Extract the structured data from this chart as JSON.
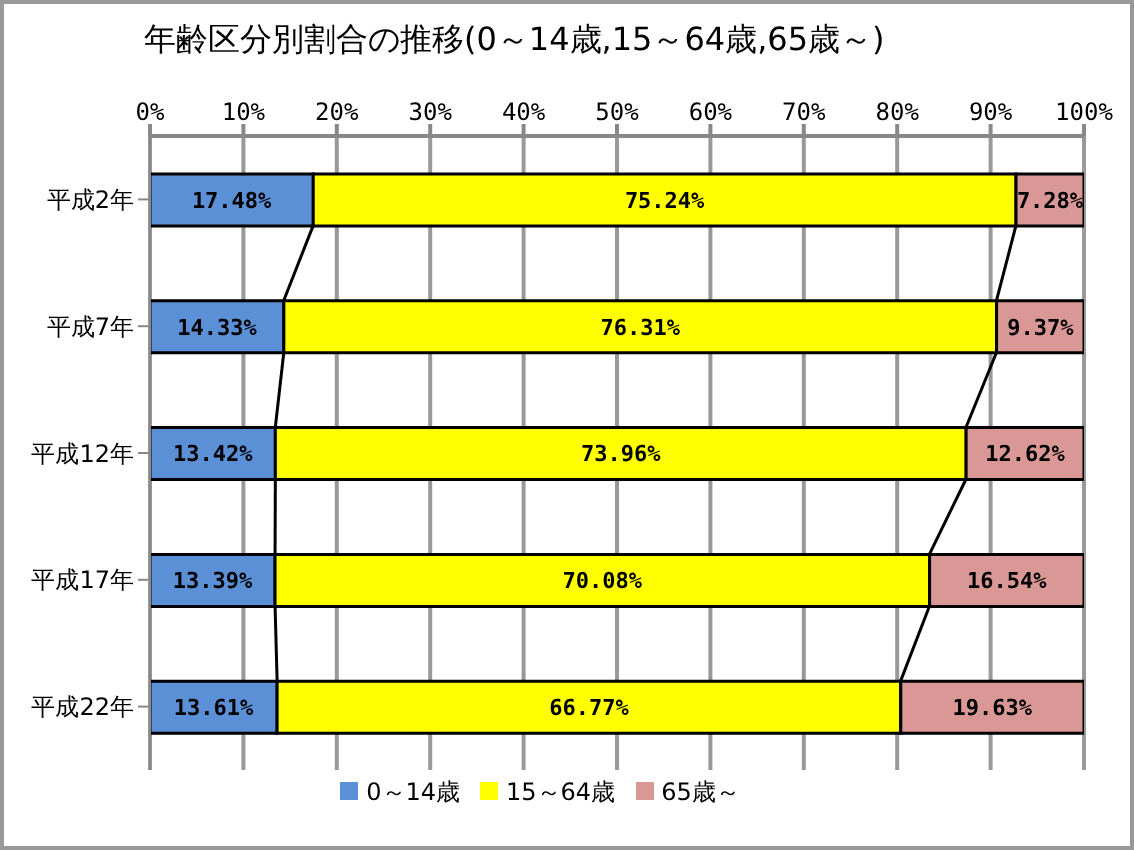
{
  "chart_data": {
    "type": "bar",
    "orientation": "horizontal",
    "stacked": true,
    "title": "年齢区分別割合の推移(0～14歳,15～64歳,65歳～)",
    "categories": [
      "平成2年",
      "平成7年",
      "平成12年",
      "平成17年",
      "平成22年"
    ],
    "series": [
      {
        "name": "0～14歳",
        "color": "#5b8fd6",
        "values": [
          17.48,
          14.33,
          13.42,
          13.39,
          13.61
        ],
        "value_labels": [
          "17.48%",
          "14.33%",
          "13.42%",
          "13.39%",
          "13.61%"
        ]
      },
      {
        "name": "15～64歳",
        "color": "#ffff00",
        "values": [
          75.24,
          76.31,
          73.96,
          70.08,
          66.77
        ],
        "value_labels": [
          "75.24%",
          "76.31%",
          "73.96%",
          "70.08%",
          "66.77%"
        ]
      },
      {
        "name": "65歳～",
        "color": "#d99795",
        "values": [
          7.28,
          9.37,
          12.62,
          16.54,
          19.63
        ],
        "value_labels": [
          "7.28%",
          "9.37%",
          "12.62%",
          "16.54%",
          "19.63%"
        ]
      }
    ],
    "xlim": [
      0,
      100
    ],
    "xticks": [
      {
        "value": 0,
        "label": "0%"
      },
      {
        "value": 10,
        "label": "10%"
      },
      {
        "value": 20,
        "label": "20%"
      },
      {
        "value": 30,
        "label": "30%"
      },
      {
        "value": 40,
        "label": "40%"
      },
      {
        "value": 50,
        "label": "50%"
      },
      {
        "value": 60,
        "label": "60%"
      },
      {
        "value": 70,
        "label": "70%"
      },
      {
        "value": 80,
        "label": "80%"
      },
      {
        "value": 90,
        "label": "90%"
      },
      {
        "value": 100,
        "label": "100%"
      }
    ],
    "grid": "x",
    "legend": "bottom"
  }
}
